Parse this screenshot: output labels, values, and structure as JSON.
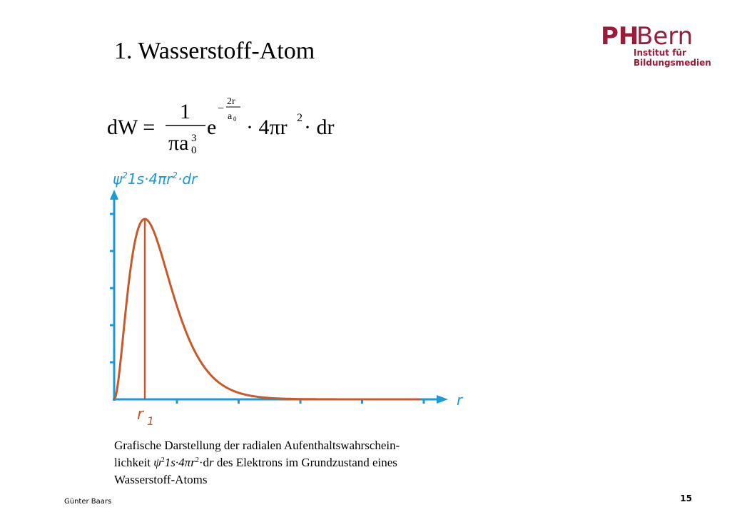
{
  "title": "1. Wasserstoff-Atom",
  "logo": {
    "ph": "PH",
    "bern": "Bern",
    "line1": "Institut für",
    "line2": "Bildungsmedien"
  },
  "formula": {
    "lhs": "dW =",
    "numerator": "1",
    "denominator": "πa",
    "denominator_sub": "0",
    "denominator_sup": "3",
    "base": "e",
    "exp_sign": "−",
    "exp_num": "2r",
    "exp_den": "a",
    "exp_den_sub": "0",
    "rest": "· 4πr",
    "rest_sup": "2",
    "tail": "· dr"
  },
  "figure": {
    "y_label": {
      "psi": "ψ",
      "sup1": "2",
      "mid": "1s·4πr",
      "sup2": "2",
      "end": "·dr"
    },
    "x_label": "r",
    "peak_label": "r",
    "peak_sub": "1"
  },
  "caption": {
    "line1": "Grafische Darstellung der radialen Aufenthaltswahrschein-",
    "line2_a": "lichkeit ",
    "line2_psi": "ψ",
    "line2_sup1": "2",
    "line2_mid": "1s·4π",
    "line2_r": "r",
    "line2_sup2": "2",
    "line2_dot": "·d",
    "line2_r2": "r",
    "line2_end": " des Elektrons im Grundzustand eines",
    "line3": "Wasserstoff-Atoms"
  },
  "footer": {
    "author": "Günter Baars",
    "page": "15"
  }
}
